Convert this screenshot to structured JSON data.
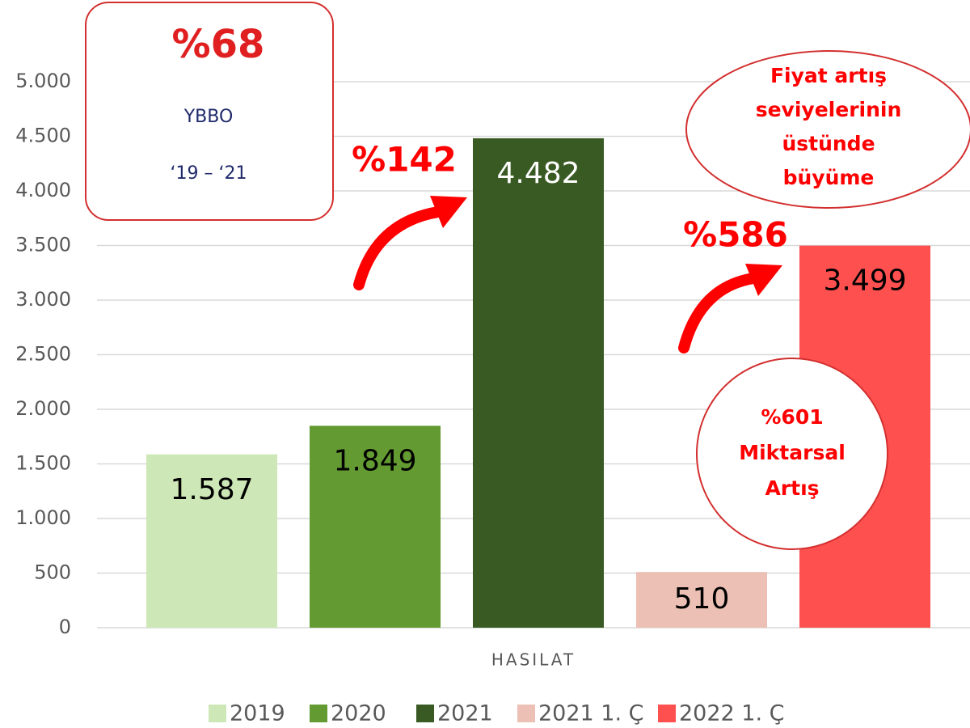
{
  "chart_data": {
    "type": "bar",
    "categories": [
      "HASILAT"
    ],
    "series": [
      {
        "name": "2019",
        "color": "#cde8b6",
        "label_color": "#000000",
        "values": [
          1587
        ],
        "value_labels": [
          "1.587"
        ]
      },
      {
        "name": "2020",
        "color": "#639a31",
        "label_color": "#000000",
        "values": [
          1849
        ],
        "value_labels": [
          "1.849"
        ]
      },
      {
        "name": "2021",
        "color": "#3a5a24",
        "label_color": "#ffffff",
        "values": [
          4482
        ],
        "value_labels": [
          "4.482"
        ]
      },
      {
        "name": "2021 1. Ç",
        "color": "#ecc0b5",
        "label_color": "#000000",
        "values": [
          510
        ],
        "value_labels": [
          "510"
        ]
      },
      {
        "name": "2022 1. Ç",
        "color": "#ff5050",
        "label_color": "#000000",
        "values": [
          3499
        ],
        "value_labels": [
          "3.499"
        ]
      }
    ],
    "ylim": [
      0,
      5000
    ],
    "yticks": [
      0,
      500,
      {
        "value": 1000,
        "label": "1.000"
      },
      {
        "value": 1500,
        "label": "1.500"
      },
      {
        "value": 2000,
        "label": "2.000"
      },
      {
        "value": 2500,
        "label": "2.500"
      },
      {
        "value": 3000,
        "label": "3.000"
      },
      {
        "value": 3500,
        "label": "3.500"
      },
      {
        "value": 4000,
        "label": "4.000"
      },
      {
        "value": 4500,
        "label": "4.500"
      },
      {
        "value": 5000,
        "label": "5.000"
      }
    ],
    "grid": true,
    "legend": "bottom",
    "annotations": [
      {
        "text": "%68"
      },
      {
        "text": "YBBO"
      },
      {
        "text": "‘19 – ‘21"
      },
      {
        "text": "%142"
      },
      {
        "text": "%586"
      },
      {
        "lines": [
          "Fiyat artış",
          "seviyelerinin",
          "üstünde",
          "büyüme"
        ]
      },
      {
        "lines": [
          "%601",
          "Miktarsal",
          "Artış"
        ]
      }
    ]
  }
}
